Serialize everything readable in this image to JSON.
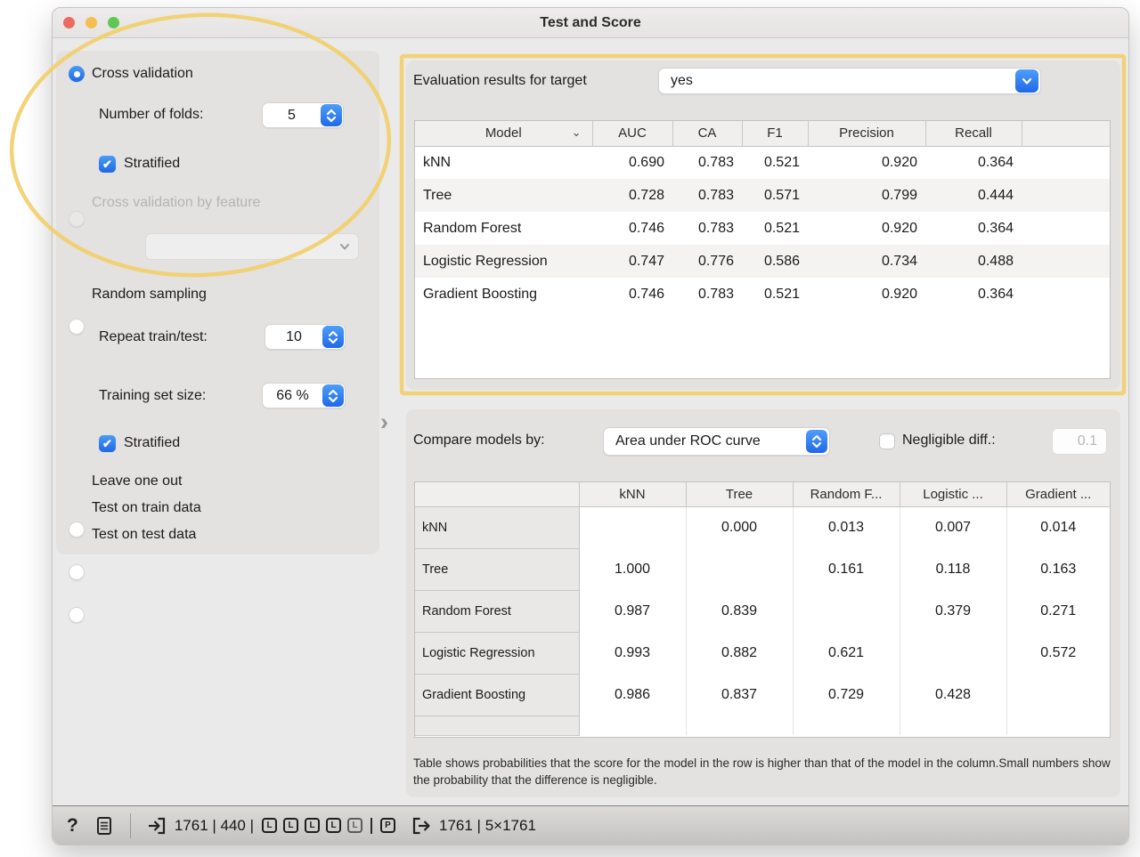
{
  "window": {
    "title": "Test and Score"
  },
  "colors": {
    "accent_blue": "#2472e8",
    "annotation_yellow": "#f2cf6b"
  },
  "sidebar": {
    "cross_validation_label": "Cross validation",
    "folds_label": "Number of folds:",
    "folds_value": "5",
    "stratified_label": "Stratified",
    "cv_by_feature_label": "Cross validation by feature",
    "random_sampling_label": "Random sampling",
    "repeat_label": "Repeat train/test:",
    "repeat_value": "10",
    "train_size_label": "Training set size:",
    "train_size_value": "66 %",
    "stratified2_label": "Stratified",
    "leave_one_out_label": "Leave one out",
    "test_on_train_label": "Test on train data",
    "test_on_test_label": "Test on test data"
  },
  "evaluation": {
    "target_label": "Evaluation results for target",
    "target_value": "yes",
    "table": {
      "columns": [
        "Model",
        "AUC",
        "CA",
        "F1",
        "Precision",
        "Recall"
      ],
      "rows": [
        {
          "model": "kNN",
          "values": [
            "0.690",
            "0.783",
            "0.521",
            "0.920",
            "0.364"
          ]
        },
        {
          "model": "Tree",
          "values": [
            "0.728",
            "0.783",
            "0.571",
            "0.799",
            "0.444"
          ]
        },
        {
          "model": "Random Forest",
          "values": [
            "0.746",
            "0.783",
            "0.521",
            "0.920",
            "0.364"
          ]
        },
        {
          "model": "Logistic Regression",
          "values": [
            "0.747",
            "0.776",
            "0.586",
            "0.734",
            "0.488"
          ]
        },
        {
          "model": "Gradient Boosting",
          "values": [
            "0.746",
            "0.783",
            "0.521",
            "0.920",
            "0.364"
          ]
        }
      ]
    }
  },
  "comparison": {
    "compare_label": "Compare models by:",
    "compare_value": "Area under ROC curve",
    "negligible_label": "Negligible diff.:",
    "negligible_value": "0.1",
    "table": {
      "columns": [
        "kNN",
        "Tree",
        "Random F...",
        "Logistic ...",
        "Gradient ..."
      ],
      "rows": [
        {
          "model": "kNN",
          "values": [
            "",
            "0.000",
            "0.013",
            "0.007",
            "0.014"
          ]
        },
        {
          "model": "Tree",
          "values": [
            "1.000",
            "",
            "0.161",
            "0.118",
            "0.163"
          ]
        },
        {
          "model": "Random Forest",
          "values": [
            "0.987",
            "0.839",
            "",
            "0.379",
            "0.271"
          ]
        },
        {
          "model": "Logistic Regression",
          "values": [
            "0.993",
            "0.882",
            "0.621",
            "",
            "0.572"
          ]
        },
        {
          "model": "Gradient Boosting",
          "values": [
            "0.986",
            "0.837",
            "0.729",
            "0.428",
            ""
          ]
        }
      ]
    },
    "footnote": "Table shows probabilities that the score for the model in the row is higher than that of the model in the column.Small numbers show the probability that the difference is negligible."
  },
  "status_bar": {
    "help_glyph": "?",
    "input_summary": "1761 | 440 |",
    "learner_badges": [
      "L",
      "L",
      "L",
      "L",
      "L"
    ],
    "predictions_badge": "P",
    "output_summary": "1761 | 5×1761"
  }
}
